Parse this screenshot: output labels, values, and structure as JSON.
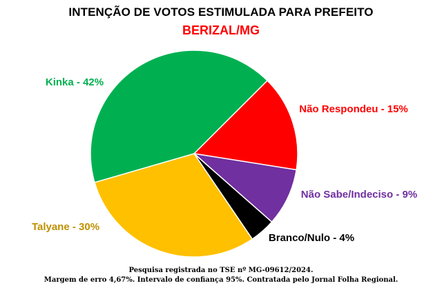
{
  "chart_data": {
    "type": "pie",
    "title": "INTENÇÃO DE VOTOS ESTIMULADA PARA PREFEITO",
    "subtitle": "BERIZAL/MG",
    "subtitle_color": "#ff0000",
    "slices": [
      {
        "label": "Não Respondeu - 15%",
        "name": "Não Respondeu",
        "value": 15,
        "color": "#ff0000",
        "label_color": "#ff0000"
      },
      {
        "label": "Não Sabe/Indeciso - 9%",
        "name": "Não Sabe/Indeciso",
        "value": 9,
        "color": "#7030a0",
        "label_color": "#7030a0"
      },
      {
        "label": "Branco/Nulo - 4%",
        "name": "Branco/Nulo",
        "value": 4,
        "color": "#000000",
        "label_color": "#000000"
      },
      {
        "label": "Talyane - 30%",
        "name": "Talyane",
        "value": 30,
        "color": "#ffc000",
        "label_color": "#c09000"
      },
      {
        "label": "Kinka - 42%",
        "name": "Kinka",
        "value": 42,
        "color": "#00b050",
        "label_color": "#00b050"
      }
    ],
    "legend": "none"
  },
  "footnote": {
    "line1": "Pesquisa registrada no TSE nº MG-09612/2024.",
    "line2": "Margem de erro 4,67%. Intervalo de confiança 95%. Contratada pelo Jornal Folha Regional."
  }
}
